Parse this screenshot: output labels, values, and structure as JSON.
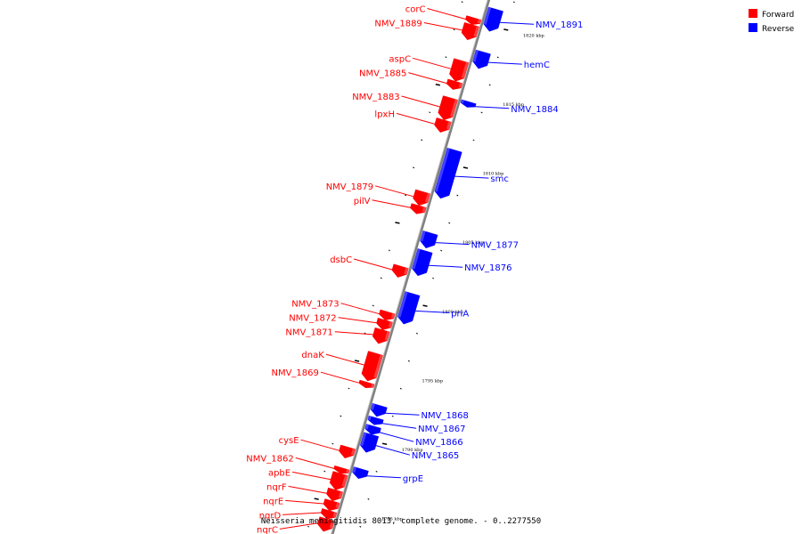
{
  "caption": "Neisseria meningitidis 8013, complete genome. - 0..2277550",
  "legend": [
    {
      "label": "Forward",
      "color": "#ff0000"
    },
    {
      "label": "Reverse",
      "color": "#0000ff"
    }
  ],
  "colors": {
    "forward": "#ff0000",
    "reverse": "#0000ff",
    "axis": "#808080"
  },
  "axis": {
    "start_kbp": 1783,
    "end_kbp": 1822,
    "tick_step_kbp": 5
  },
  "ticks": [
    {
      "kbp": 1820,
      "label": "1820 kbp"
    },
    {
      "kbp": 1815,
      "label": "1815 kbp"
    },
    {
      "kbp": 1810,
      "label": "1810 kbp"
    },
    {
      "kbp": 1805,
      "label": "1805 kbp"
    },
    {
      "kbp": 1800,
      "label": "1800 kbp"
    },
    {
      "kbp": 1795,
      "label": "1795 kbp"
    },
    {
      "kbp": 1790,
      "label": "1790 kbp"
    },
    {
      "kbp": 1785,
      "label": "1785 kbp"
    }
  ],
  "genes": [
    {
      "name": "corC",
      "strand": "forward",
      "start": 1820.2,
      "end": 1819.7
    },
    {
      "name": "NMV_1889",
      "strand": "forward",
      "start": 1819.7,
      "end": 1818.6
    },
    {
      "name": "NMV_1891",
      "strand": "reverse",
      "start": 1821.2,
      "end": 1819.6
    },
    {
      "name": "hemC",
      "strand": "reverse",
      "start": 1818.1,
      "end": 1816.9
    },
    {
      "name": "aspC",
      "strand": "forward",
      "start": 1817.1,
      "end": 1815.6
    },
    {
      "name": "NMV_1885",
      "strand": "forward",
      "start": 1815.6,
      "end": 1815.0
    },
    {
      "name": "NMV_1884",
      "strand": "reverse",
      "start": 1814.5,
      "end": 1814.1
    },
    {
      "name": "NMV_1883",
      "strand": "forward",
      "start": 1814.4,
      "end": 1812.8
    },
    {
      "name": "lpxH",
      "strand": "forward",
      "start": 1812.8,
      "end": 1811.9
    },
    {
      "name": "smc",
      "strand": "reverse",
      "start": 1811.0,
      "end": 1807.5
    },
    {
      "name": "NMV_1879",
      "strand": "forward",
      "start": 1807.6,
      "end": 1806.6
    },
    {
      "name": "pilV",
      "strand": "forward",
      "start": 1806.6,
      "end": 1806.0
    },
    {
      "name": "NMV_1877",
      "strand": "reverse",
      "start": 1805.0,
      "end": 1803.9
    },
    {
      "name": "NMV_1876",
      "strand": "reverse",
      "start": 1803.7,
      "end": 1801.9
    },
    {
      "name": "dsbC",
      "strand": "forward",
      "start": 1802.2,
      "end": 1801.4
    },
    {
      "name": "priA",
      "strand": "reverse",
      "start": 1800.6,
      "end": 1798.4
    },
    {
      "name": "NMV_1873",
      "strand": "forward",
      "start": 1798.9,
      "end": 1798.3
    },
    {
      "name": "NMV_1872",
      "strand": "forward",
      "start": 1798.3,
      "end": 1797.6
    },
    {
      "name": "NMV_1871",
      "strand": "forward",
      "start": 1797.6,
      "end": 1796.6
    },
    {
      "name": "dnaK",
      "strand": "forward",
      "start": 1795.9,
      "end": 1793.9
    },
    {
      "name": "NMV_1869",
      "strand": "forward",
      "start": 1793.8,
      "end": 1793.4
    },
    {
      "name": "NMV_1868",
      "strand": "reverse",
      "start": 1792.5,
      "end": 1791.7
    },
    {
      "name": "NMV_1867",
      "strand": "reverse",
      "start": 1791.6,
      "end": 1791.1
    },
    {
      "name": "NMV_1866",
      "strand": "reverse",
      "start": 1791.0,
      "end": 1790.4
    },
    {
      "name": "NMV_1865",
      "strand": "reverse",
      "start": 1790.4,
      "end": 1789.1
    },
    {
      "name": "cysE",
      "strand": "forward",
      "start": 1789.1,
      "end": 1788.3
    },
    {
      "name": "NMV_1862",
      "strand": "forward",
      "start": 1787.6,
      "end": 1787.2
    },
    {
      "name": "grpE",
      "strand": "reverse",
      "start": 1787.9,
      "end": 1787.2
    },
    {
      "name": "apbE",
      "strand": "forward",
      "start": 1787.2,
      "end": 1786.0
    },
    {
      "name": "nqrF",
      "strand": "forward",
      "start": 1786.0,
      "end": 1785.2
    },
    {
      "name": "nqrE",
      "strand": "forward",
      "start": 1785.2,
      "end": 1784.5
    },
    {
      "name": "nqrD",
      "strand": "forward",
      "start": 1784.5,
      "end": 1783.9
    },
    {
      "name": "nqrC",
      "strand": "forward",
      "start": 1783.9,
      "end": 1783.0
    }
  ]
}
